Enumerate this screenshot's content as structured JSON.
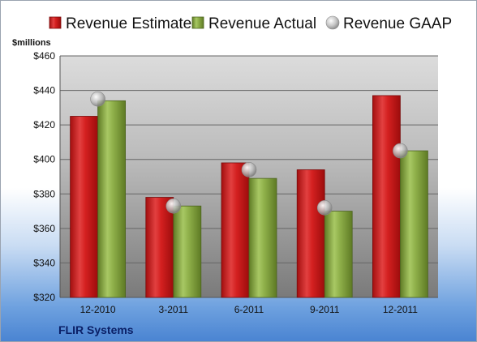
{
  "company": "FLIR Systems",
  "chart_data": {
    "type": "bar",
    "unit_label": "$millions",
    "categories": [
      "12-2010",
      "3-2011",
      "6-2011",
      "9-2011",
      "12-2011"
    ],
    "series": [
      {
        "name": "Revenue Estimate",
        "kind": "bar",
        "color": "#d42020",
        "values": [
          425,
          378,
          398,
          394,
          437
        ]
      },
      {
        "name": "Revenue Actual",
        "kind": "bar",
        "color": "#8fb04a",
        "values": [
          434,
          373,
          389,
          370,
          405
        ]
      },
      {
        "name": "Revenue GAAP",
        "kind": "marker",
        "color": "#c8c8c8",
        "values": [
          435,
          373,
          394,
          372,
          405
        ]
      }
    ],
    "ylim": [
      320,
      460
    ],
    "yticks": [
      320,
      340,
      360,
      380,
      400,
      420,
      440,
      460
    ],
    "ytick_labels": [
      "$320",
      "$340",
      "$360",
      "$380",
      "$400",
      "$420",
      "$440",
      "$460"
    ],
    "legend_position": "top",
    "grid": true
  }
}
